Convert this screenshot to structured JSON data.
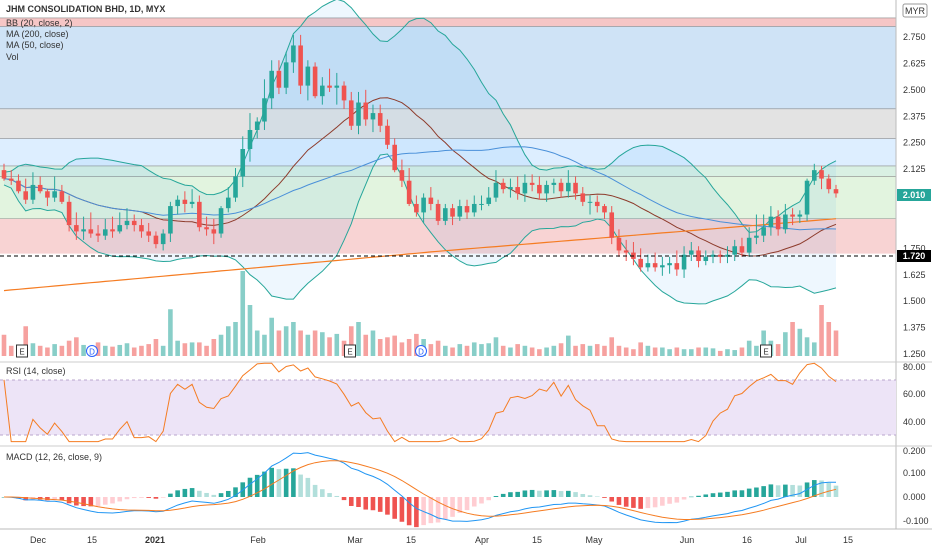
{
  "chart_data": {
    "type": "candlestick",
    "title": "JHM CONSOLIDATION BHD, 1D, MYX",
    "currency": "MYR",
    "legend": [
      "BB (20, close, 2)",
      "MA (200, close)",
      "MA (50, close)",
      "Vol"
    ],
    "price_ticks": [
      "2.750",
      "2.625",
      "2.500",
      "2.375",
      "2.250",
      "2.125",
      "1.750",
      "1.625",
      "1.500",
      "1.375",
      "1.250"
    ],
    "price_range": [
      1.22,
      2.86
    ],
    "last_price": "2.010",
    "horizontal_line_label": "1.720",
    "x_labels": [
      "Dec",
      "15",
      "2021",
      "Feb",
      "Mar",
      "15",
      "Apr",
      "15",
      "May",
      "Jun",
      "16",
      "Jul",
      "15"
    ],
    "event_markers": [
      "E",
      "D",
      "E",
      "D",
      "E"
    ],
    "zones": [
      {
        "from": 2.84,
        "to": 2.8,
        "color": "#f6c6c6"
      },
      {
        "from": 2.8,
        "to": 2.41,
        "color": "#cfe3f6"
      },
      {
        "from": 2.41,
        "to": 2.27,
        "color": "#e3e3e3"
      },
      {
        "from": 2.27,
        "to": 2.14,
        "color": "#ddeeff"
      },
      {
        "from": 2.14,
        "to": 2.09,
        "color": "#d9f0e3"
      },
      {
        "from": 2.09,
        "to": 1.89,
        "color": "#e2f4df"
      },
      {
        "from": 1.89,
        "to": 1.725,
        "color": "#f8d3d3"
      }
    ],
    "candles": {
      "open": [
        2.12,
        2.08,
        2.07,
        2.02,
        1.98,
        2.05,
        2.02,
        1.99,
        2.02,
        1.97,
        1.86,
        1.83,
        1.84,
        1.82,
        1.81,
        1.84,
        1.83,
        1.86,
        1.88,
        1.86,
        1.83,
        1.81,
        1.77,
        1.82,
        1.95,
        1.98,
        1.96,
        1.97,
        1.85,
        1.84,
        1.82,
        1.94,
        1.99,
        2.09,
        2.22,
        2.31,
        2.35,
        2.46,
        2.59,
        2.51,
        2.63,
        2.71,
        2.52,
        2.61,
        2.47,
        2.52,
        2.51,
        2.52,
        2.45,
        2.33,
        2.44,
        2.36,
        2.39,
        2.33,
        2.24,
        2.12,
        2.07,
        1.96,
        1.92,
        1.99,
        1.96,
        1.88,
        1.94,
        1.9,
        1.95,
        1.92,
        1.96,
        1.96,
        1.99,
        2.06,
        2.03,
        2.04,
        2.01,
        2.06,
        2.05,
        2.01,
        2.05,
        2.06,
        2.02,
        2.06,
        2.01,
        1.97,
        1.97,
        1.95,
        1.92,
        1.8,
        1.74,
        1.73,
        1.7,
        1.66,
        1.68,
        1.66,
        1.67,
        1.68,
        1.65,
        1.72,
        1.74,
        1.69,
        1.71,
        1.72,
        1.71,
        1.72,
        1.76,
        1.73,
        1.8,
        1.81,
        1.85,
        1.9,
        1.84,
        1.91,
        1.9,
        1.91,
        2.07,
        2.12,
        2.08,
        2.03
      ],
      "high": [
        2.15,
        2.12,
        2.1,
        2.08,
        2.11,
        2.09,
        2.03,
        2.09,
        2.05,
        2.0,
        1.92,
        1.9,
        1.92,
        1.86,
        1.89,
        1.9,
        1.92,
        1.94,
        1.91,
        1.89,
        1.87,
        1.83,
        1.84,
        1.97,
        2.0,
        2.02,
        2.03,
        2.0,
        1.9,
        1.89,
        1.95,
        2.04,
        2.13,
        2.28,
        2.39,
        2.37,
        2.55,
        2.64,
        2.64,
        2.68,
        2.76,
        2.76,
        2.64,
        2.63,
        2.56,
        2.6,
        2.58,
        2.54,
        2.49,
        2.49,
        2.5,
        2.43,
        2.43,
        2.36,
        2.27,
        2.17,
        2.13,
        2.0,
        2.01,
        2.04,
        1.98,
        1.96,
        1.96,
        1.98,
        1.98,
        2.0,
        2.0,
        2.04,
        2.12,
        2.08,
        2.08,
        2.09,
        2.1,
        2.1,
        2.09,
        2.07,
        2.08,
        2.08,
        2.12,
        2.09,
        2.04,
        2.0,
        2.0,
        1.96,
        1.95,
        1.84,
        1.79,
        1.78,
        1.75,
        1.72,
        1.73,
        1.71,
        1.71,
        1.74,
        1.76,
        1.78,
        1.76,
        1.74,
        1.74,
        1.74,
        1.76,
        1.79,
        1.8,
        1.85,
        1.91,
        1.91,
        1.95,
        1.93,
        1.96,
        1.94,
        1.93,
        2.08,
        2.15,
        2.14,
        2.1,
        2.05
      ],
      "low": [
        2.07,
        2.05,
        2.01,
        1.96,
        1.96,
        2.01,
        1.95,
        1.97,
        1.96,
        1.83,
        1.79,
        1.79,
        1.8,
        1.78,
        1.79,
        1.8,
        1.82,
        1.84,
        1.83,
        1.8,
        1.78,
        1.75,
        1.74,
        1.78,
        1.91,
        1.92,
        1.94,
        1.83,
        1.81,
        1.77,
        1.8,
        1.92,
        1.97,
        2.04,
        2.16,
        2.27,
        2.31,
        2.41,
        2.48,
        2.48,
        2.58,
        2.48,
        2.45,
        2.46,
        2.43,
        2.49,
        2.43,
        2.41,
        2.31,
        2.29,
        2.33,
        2.3,
        2.3,
        2.22,
        2.11,
        2.04,
        1.95,
        1.9,
        1.87,
        1.93,
        1.86,
        1.86,
        1.86,
        1.88,
        1.89,
        1.9,
        1.93,
        1.95,
        1.97,
        2.01,
        1.99,
        1.98,
        1.97,
        2.02,
        1.98,
        1.97,
        2.01,
        1.99,
        1.99,
        1.98,
        1.95,
        1.91,
        1.92,
        1.89,
        1.77,
        1.71,
        1.69,
        1.67,
        1.64,
        1.64,
        1.64,
        1.62,
        1.63,
        1.62,
        1.61,
        1.69,
        1.66,
        1.67,
        1.68,
        1.68,
        1.68,
        1.69,
        1.71,
        1.71,
        1.77,
        1.78,
        1.81,
        1.81,
        1.82,
        1.86,
        1.87,
        1.88,
        2.05,
        2.03,
        2.01,
        1.99
      ],
      "close": [
        2.08,
        2.07,
        2.02,
        1.98,
        2.05,
        2.02,
        1.99,
        2.02,
        1.97,
        1.86,
        1.83,
        1.84,
        1.82,
        1.81,
        1.84,
        1.83,
        1.86,
        1.88,
        1.86,
        1.83,
        1.81,
        1.77,
        1.82,
        1.95,
        1.98,
        1.96,
        1.97,
        1.85,
        1.84,
        1.82,
        1.94,
        1.99,
        2.09,
        2.22,
        2.31,
        2.35,
        2.46,
        2.59,
        2.51,
        2.63,
        2.71,
        2.52,
        2.61,
        2.47,
        2.52,
        2.51,
        2.52,
        2.45,
        2.33,
        2.44,
        2.36,
        2.39,
        2.33,
        2.24,
        2.12,
        2.07,
        1.96,
        1.92,
        1.99,
        1.96,
        1.88,
        1.94,
        1.9,
        1.95,
        1.92,
        1.96,
        1.96,
        1.99,
        2.06,
        2.03,
        2.04,
        2.01,
        2.06,
        2.05,
        2.01,
        2.05,
        2.06,
        2.02,
        2.06,
        2.01,
        1.97,
        1.97,
        1.95,
        1.92,
        1.8,
        1.74,
        1.73,
        1.7,
        1.66,
        1.68,
        1.66,
        1.67,
        1.68,
        1.65,
        1.72,
        1.74,
        1.69,
        1.71,
        1.72,
        1.71,
        1.72,
        1.76,
        1.73,
        1.8,
        1.81,
        1.85,
        1.9,
        1.84,
        1.91,
        1.9,
        1.91,
        2.07,
        2.12,
        2.08,
        2.03,
        2.01
      ]
    },
    "volume": [
      0.25,
      0.12,
      0.1,
      0.35,
      0.15,
      0.12,
      0.1,
      0.14,
      0.12,
      0.18,
      0.22,
      0.13,
      0.1,
      0.16,
      0.12,
      0.11,
      0.13,
      0.15,
      0.1,
      0.12,
      0.14,
      0.2,
      0.12,
      0.55,
      0.18,
      0.15,
      0.16,
      0.16,
      0.12,
      0.2,
      0.25,
      0.35,
      0.4,
      1.0,
      0.6,
      0.3,
      0.25,
      0.45,
      0.3,
      0.35,
      0.4,
      0.3,
      0.25,
      0.3,
      0.28,
      0.22,
      0.26,
      0.18,
      0.35,
      0.4,
      0.25,
      0.3,
      0.2,
      0.22,
      0.24,
      0.16,
      0.2,
      0.26,
      0.2,
      0.14,
      0.18,
      0.12,
      0.1,
      0.14,
      0.12,
      0.16,
      0.14,
      0.15,
      0.22,
      0.12,
      0.1,
      0.14,
      0.12,
      0.1,
      0.08,
      0.1,
      0.12,
      0.15,
      0.24,
      0.12,
      0.14,
      0.12,
      0.14,
      0.12,
      0.22,
      0.12,
      0.1,
      0.08,
      0.16,
      0.12,
      0.1,
      0.1,
      0.08,
      0.1,
      0.08,
      0.08,
      0.1,
      0.1,
      0.09,
      0.06,
      0.08,
      0.07,
      0.1,
      0.18,
      0.12,
      0.3,
      0.18,
      0.14,
      0.28,
      0.4,
      0.32,
      0.22,
      0.16,
      0.6,
      0.4,
      0.3
    ],
    "rsi": {
      "label": "RSI (14, close)",
      "ticks": [
        "80.00",
        "60.00",
        "40.00"
      ]
    },
    "macd": {
      "label": "MACD (12, 26, close, 9)",
      "ticks": [
        "0.200",
        "0.100",
        "0.000",
        "-0.100"
      ]
    }
  }
}
